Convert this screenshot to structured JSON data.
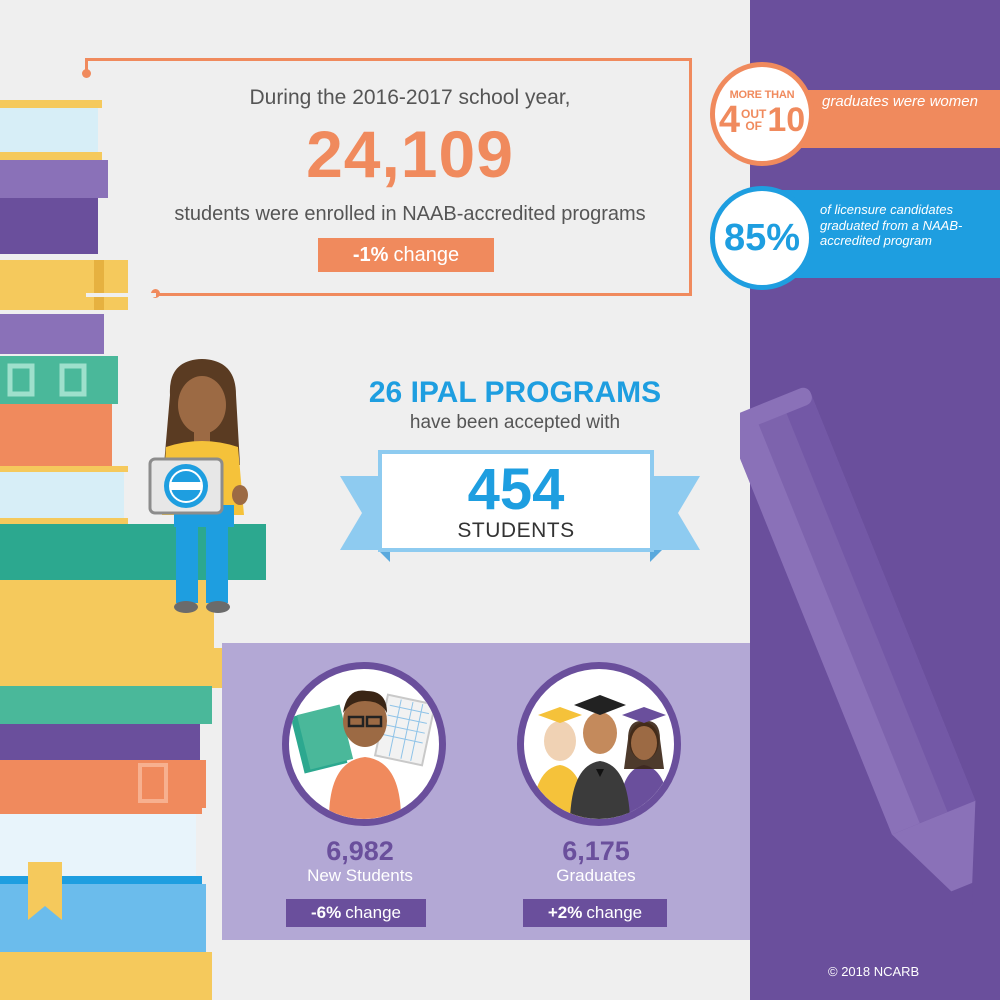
{
  "enrollment": {
    "intro": "During the 2016-2017 school year,",
    "count": "24,109",
    "description": "students were enrolled in NAAB-accredited programs",
    "change_value": "-1%",
    "change_word": "change"
  },
  "women_stat": {
    "prefix": "MORE THAN",
    "numerator": "4",
    "out": "OUT",
    "of": "OF",
    "denominator": "10",
    "text": "graduates were women"
  },
  "licensure_stat": {
    "value": "85%",
    "text": "of licensure candidates graduated from a NAAB-accredited program"
  },
  "ipal": {
    "title": "26 IPAL PROGRAMS",
    "subtitle": "have been accepted with",
    "count": "454",
    "label": "STUDENTS"
  },
  "new_students": {
    "count": "6,982",
    "label": "New Students",
    "change_value": "-6%",
    "change_word": "change"
  },
  "graduates": {
    "count": "6,175",
    "label": "Graduates",
    "change_value": "+2%",
    "change_word": "change"
  },
  "footer": {
    "copyright": "© 2018 NCARB"
  },
  "colors": {
    "orange": "#f08a5d",
    "blue": "#1e9ee0",
    "purple": "#6a4f9c",
    "lavender": "#b3a8d5",
    "background": "#efefef"
  },
  "icons": [
    "book-stack-illustration",
    "woman-with-tablet-illustration",
    "pencil-illustration",
    "ribbon-banner",
    "student-avatar",
    "graduates-avatar"
  ]
}
